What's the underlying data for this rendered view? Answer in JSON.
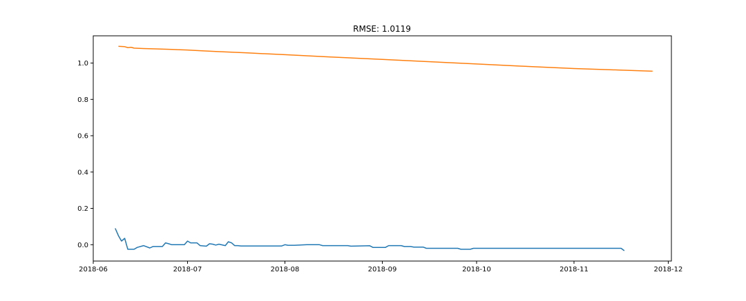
{
  "chart_data": {
    "type": "line",
    "title": "RMSE: 1.0119",
    "xlabel": "",
    "ylabel": "",
    "x_axis_type": "date",
    "xlim": [
      "2018-06-01",
      "2018-12-02"
    ],
    "ylim": [
      -0.09,
      1.15
    ],
    "x_ticks": [
      "2018-06",
      "2018-07",
      "2018-08",
      "2018-09",
      "2018-10",
      "2018-11",
      "2018-12"
    ],
    "y_ticks": [
      "0.0",
      "0.2",
      "0.4",
      "0.6",
      "0.8",
      "1.0"
    ],
    "grid": false,
    "legend": "none",
    "series": [
      {
        "color": "#1f77b4",
        "points": [
          [
            "2018-06-08",
            0.09
          ],
          [
            "2018-06-09",
            0.05
          ],
          [
            "2018-06-10",
            0.02
          ],
          [
            "2018-06-11",
            0.035
          ],
          [
            "2018-06-12",
            -0.025
          ],
          [
            "2018-06-14",
            -0.025
          ],
          [
            "2018-06-15",
            -0.015
          ],
          [
            "2018-06-17",
            -0.005
          ],
          [
            "2018-06-19",
            -0.018
          ],
          [
            "2018-06-20",
            -0.01
          ],
          [
            "2018-06-23",
            -0.01
          ],
          [
            "2018-06-24",
            0.01
          ],
          [
            "2018-06-25",
            0.005
          ],
          [
            "2018-06-26",
            0.0
          ],
          [
            "2018-06-30",
            0.0
          ],
          [
            "2018-07-01",
            0.02
          ],
          [
            "2018-07-02",
            0.01
          ],
          [
            "2018-07-04",
            0.01
          ],
          [
            "2018-07-05",
            -0.005
          ],
          [
            "2018-07-07",
            -0.008
          ],
          [
            "2018-07-08",
            0.005
          ],
          [
            "2018-07-09",
            0.003
          ],
          [
            "2018-07-10",
            -0.002
          ],
          [
            "2018-07-11",
            0.003
          ],
          [
            "2018-07-13",
            -0.005
          ],
          [
            "2018-07-14",
            0.016
          ],
          [
            "2018-07-15",
            0.01
          ],
          [
            "2018-07-16",
            -0.005
          ],
          [
            "2018-07-17",
            -0.005
          ],
          [
            "2018-07-18",
            -0.007
          ],
          [
            "2018-07-31",
            -0.007
          ],
          [
            "2018-08-01",
            0.0
          ],
          [
            "2018-08-02",
            -0.003
          ],
          [
            "2018-08-04",
            -0.003
          ],
          [
            "2018-08-08",
            0.0
          ],
          [
            "2018-08-12",
            0.0
          ],
          [
            "2018-08-13",
            -0.005
          ],
          [
            "2018-08-21",
            -0.005
          ],
          [
            "2018-08-22",
            -0.008
          ],
          [
            "2018-08-28",
            -0.006
          ],
          [
            "2018-08-29",
            -0.015
          ],
          [
            "2018-09-02",
            -0.015
          ],
          [
            "2018-09-03",
            -0.005
          ],
          [
            "2018-09-07",
            -0.005
          ],
          [
            "2018-09-08",
            -0.01
          ],
          [
            "2018-09-10",
            -0.01
          ],
          [
            "2018-09-11",
            -0.013
          ],
          [
            "2018-09-14",
            -0.013
          ],
          [
            "2018-09-15",
            -0.02
          ],
          [
            "2018-09-25",
            -0.02
          ],
          [
            "2018-09-26",
            -0.025
          ],
          [
            "2018-09-29",
            -0.025
          ],
          [
            "2018-09-30",
            -0.02
          ],
          [
            "2018-11-16",
            -0.02
          ],
          [
            "2018-11-17",
            -0.033
          ]
        ]
      },
      {
        "color": "#ff7f0e",
        "points": [
          [
            "2018-06-09",
            1.092
          ],
          [
            "2018-06-11",
            1.09
          ],
          [
            "2018-06-12",
            1.085
          ],
          [
            "2018-06-13",
            1.087
          ],
          [
            "2018-06-14",
            1.082
          ],
          [
            "2018-06-17",
            1.08
          ],
          [
            "2018-06-21",
            1.078
          ],
          [
            "2018-06-26",
            1.075
          ],
          [
            "2018-07-01",
            1.072
          ],
          [
            "2018-07-05",
            1.068
          ],
          [
            "2018-07-10",
            1.064
          ],
          [
            "2018-07-15",
            1.06
          ],
          [
            "2018-07-20",
            1.056
          ],
          [
            "2018-08-01",
            1.046
          ],
          [
            "2018-08-15",
            1.034
          ],
          [
            "2018-09-01",
            1.02
          ],
          [
            "2018-09-15",
            1.008
          ],
          [
            "2018-10-01",
            0.995
          ],
          [
            "2018-10-15",
            0.983
          ],
          [
            "2018-11-01",
            0.97
          ],
          [
            "2018-11-15",
            0.962
          ],
          [
            "2018-11-26",
            0.955
          ]
        ]
      }
    ]
  }
}
